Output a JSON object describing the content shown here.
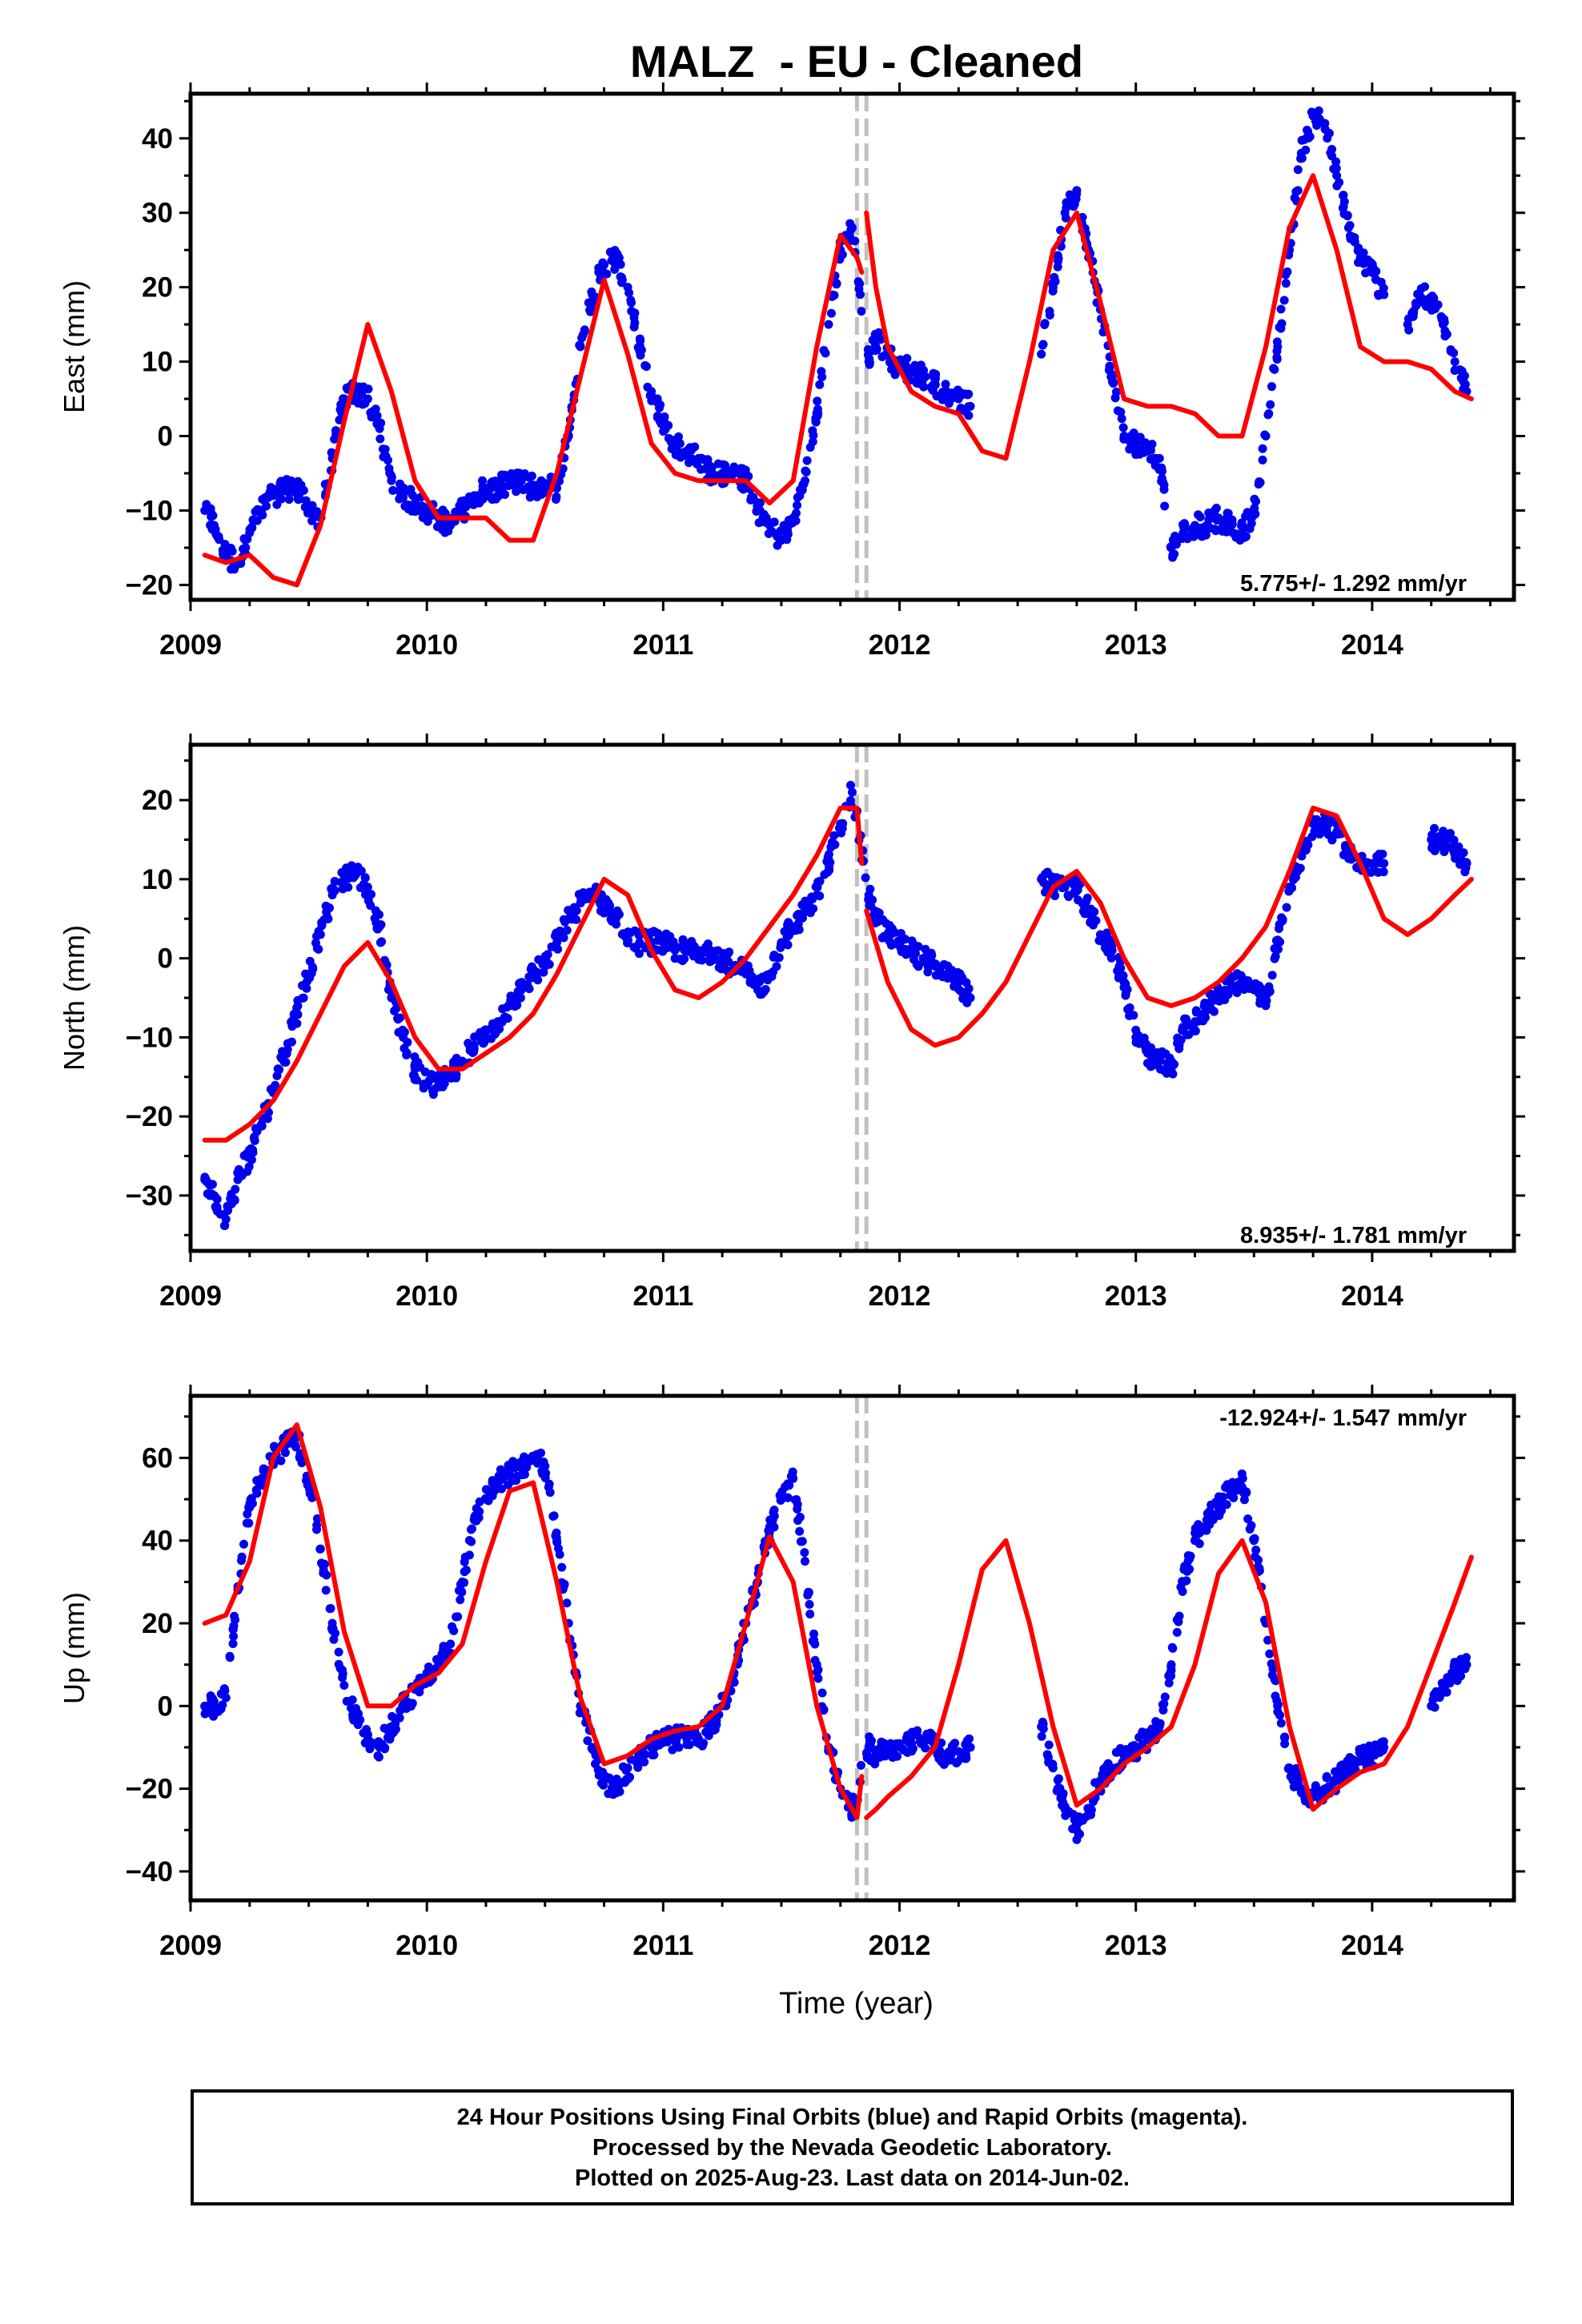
{
  "title": "MALZ  - EU - Cleaned",
  "caption": [
    "24 Hour Positions Using Final Orbits (blue) and Rapid Orbits (magenta).",
    "Processed by the Nevada Geodetic Laboratory.",
    "Plotted on 2025-Aug-23. Last data on 2014-Jun-02."
  ],
  "colors": {
    "points": "#0000ee",
    "model": "#ff0000",
    "steps": "#c0c0c0"
  },
  "chart_data": [
    {
      "type": "scatter",
      "component": "East",
      "title": "MALZ  - EU - Cleaned",
      "xlabel": "",
      "ylabel": "East (mm)",
      "xlim": [
        2009.0,
        2014.6
      ],
      "ylim": [
        -22,
        46
      ],
      "xticks": [
        2009,
        2010,
        2011,
        2012,
        2013,
        2014
      ],
      "yticks": [
        -20,
        -10,
        0,
        10,
        20,
        30,
        40
      ],
      "rate_label": "5.775+/- 1.292 mm/yr",
      "step_lines": [
        2011.82,
        2011.86
      ],
      "obs_x": [
        2009.06,
        2009.1,
        2009.15,
        2009.2,
        2009.25,
        2009.3,
        2009.35,
        2009.4,
        2009.45,
        2009.5,
        2009.55,
        2009.6,
        2009.65,
        2009.7,
        2009.75,
        2009.8,
        2009.85,
        2009.9,
        2009.95,
        2010.0,
        2010.05,
        2010.1,
        2010.15,
        2010.2,
        2010.25,
        2010.3,
        2010.35,
        2010.4,
        2010.45,
        2010.5,
        2010.55,
        2010.6,
        2010.65,
        2010.7,
        2010.75,
        2010.8,
        2010.85,
        2010.9,
        2010.95,
        2011.0,
        2011.05,
        2011.1,
        2011.15,
        2011.2,
        2011.25,
        2011.3,
        2011.35,
        2011.4,
        2011.45,
        2011.5,
        2011.55,
        2011.6,
        2011.65,
        2011.7,
        2011.75,
        2011.8,
        2011.87,
        2011.9,
        2011.95,
        2012.0,
        2012.05,
        2012.1,
        2012.15,
        2012.2,
        2012.25,
        2012.3,
        2012.6,
        2012.65,
        2012.7,
        2012.75,
        2012.8,
        2012.85,
        2012.9,
        2012.95,
        2013.0,
        2013.05,
        2013.1,
        2013.15,
        2013.2,
        2013.25,
        2013.3,
        2013.35,
        2013.4,
        2013.45,
        2013.5,
        2013.55,
        2013.6,
        2013.65,
        2013.7,
        2013.75,
        2013.8,
        2013.85,
        2013.9,
        2013.95,
        2014.0,
        2014.05,
        2014.15,
        2014.2,
        2014.25,
        2014.3,
        2014.35,
        2014.4
      ],
      "obs_y": [
        -10,
        -12,
        -16,
        -17,
        -13,
        -10,
        -8,
        -7,
        -7,
        -10,
        -11,
        -3,
        5,
        6,
        5,
        1,
        -6,
        -8,
        -9,
        -10,
        -11,
        -12,
        -10,
        -8,
        -7,
        -7,
        -6,
        -6,
        -7,
        -7,
        -7,
        0,
        12,
        19,
        23,
        24,
        20,
        12,
        6,
        2,
        -1,
        -2,
        -3,
        -5,
        -5,
        -5,
        -6,
        -10,
        -12,
        -14,
        -11,
        -6,
        3,
        15,
        25,
        28,
        10,
        13,
        11,
        9,
        9,
        8,
        7,
        6,
        5,
        4,
        11,
        20,
        30,
        33,
        25,
        17,
        8,
        0,
        -1,
        -2,
        -3,
        -15,
        -13,
        -12,
        -12,
        -11,
        -12,
        -13,
        -10,
        0,
        12,
        25,
        38,
        43,
        42,
        35,
        28,
        24,
        22,
        19,
        15,
        19,
        18,
        15,
        10,
        6
      ],
      "model_x": [
        2009.06,
        2009.15,
        2009.25,
        2009.35,
        2009.45,
        2009.55,
        2009.65,
        2009.75,
        2009.85,
        2009.95,
        2010.05,
        2010.15,
        2010.25,
        2010.35,
        2010.45,
        2010.55,
        2010.65,
        2010.75,
        2010.85,
        2010.95,
        2011.05,
        2011.15,
        2011.25,
        2011.35,
        2011.45,
        2011.55,
        2011.65,
        2011.75,
        2011.82,
        2011.84
      ],
      "model_y": [
        -16,
        -17,
        -16,
        -19,
        -20,
        -12,
        2,
        15,
        6,
        -6,
        -11,
        -11,
        -11,
        -14,
        -14,
        -5,
        8,
        21,
        11,
        -1,
        -5,
        -6,
        -6,
        -6,
        -9,
        -6,
        12,
        27,
        24,
        22
      ],
      "model2_x": [
        2011.86,
        2011.9,
        2011.95,
        2012.05,
        2012.15,
        2012.25,
        2012.35,
        2012.45,
        2012.55,
        2012.65,
        2012.75,
        2012.85,
        2012.95,
        2013.05,
        2013.15,
        2013.25,
        2013.35,
        2013.45,
        2013.55,
        2013.65,
        2013.75,
        2013.85,
        2013.95,
        2014.05,
        2014.15,
        2014.25,
        2014.35,
        2014.42
      ],
      "model2_y": [
        30,
        20,
        12,
        6,
        4,
        3,
        -2,
        -3,
        10,
        25,
        30,
        18,
        5,
        4,
        4,
        3,
        0,
        0,
        12,
        28,
        35,
        25,
        12,
        10,
        10,
        9,
        6,
        5
      ]
    },
    {
      "type": "scatter",
      "component": "North",
      "xlabel": "",
      "ylabel": "North (mm)",
      "xlim": [
        2009.0,
        2014.6
      ],
      "ylim": [
        -37,
        27
      ],
      "xticks": [
        2009,
        2010,
        2011,
        2012,
        2013,
        2014
      ],
      "yticks": [
        -30,
        -20,
        -10,
        0,
        10,
        20
      ],
      "rate_label": "8.935+/- 1.781 mm/yr",
      "step_lines": [
        2011.82,
        2011.86
      ],
      "obs_x": [
        2009.06,
        2009.1,
        2009.15,
        2009.2,
        2009.25,
        2009.3,
        2009.35,
        2009.4,
        2009.45,
        2009.5,
        2009.55,
        2009.6,
        2009.65,
        2009.7,
        2009.75,
        2009.8,
        2009.85,
        2009.9,
        2009.95,
        2010.0,
        2010.05,
        2010.1,
        2010.15,
        2010.2,
        2010.25,
        2010.3,
        2010.35,
        2010.4,
        2010.45,
        2010.5,
        2010.55,
        2010.6,
        2010.65,
        2010.7,
        2010.75,
        2010.8,
        2010.85,
        2010.9,
        2010.95,
        2011.0,
        2011.05,
        2011.1,
        2011.15,
        2011.2,
        2011.25,
        2011.3,
        2011.35,
        2011.4,
        2011.45,
        2011.5,
        2011.55,
        2011.6,
        2011.65,
        2011.7,
        2011.75,
        2011.8,
        2011.87,
        2011.9,
        2011.95,
        2012.0,
        2012.05,
        2012.1,
        2012.15,
        2012.2,
        2012.25,
        2012.3,
        2012.6,
        2012.65,
        2012.7,
        2012.75,
        2012.8,
        2012.85,
        2012.9,
        2012.95,
        2013.0,
        2013.05,
        2013.1,
        2013.15,
        2013.2,
        2013.25,
        2013.3,
        2013.35,
        2013.4,
        2013.45,
        2013.5,
        2013.55,
        2013.6,
        2013.65,
        2013.7,
        2013.75,
        2013.8,
        2013.85,
        2013.9,
        2013.95,
        2014.0,
        2014.05,
        2014.25,
        2014.3,
        2014.35,
        2014.4
      ],
      "obs_y": [
        -28,
        -30,
        -33,
        -28,
        -25,
        -21,
        -17,
        -12,
        -7,
        -2,
        3,
        8,
        10,
        11,
        9,
        4,
        -5,
        -10,
        -14,
        -16,
        -16,
        -15,
        -13,
        -11,
        -10,
        -8,
        -6,
        -4,
        -2,
        -1,
        2,
        5,
        7,
        8,
        7,
        5,
        3,
        2,
        2,
        2,
        1,
        1,
        1,
        1,
        0,
        -1,
        -2,
        -4,
        -2,
        2,
        4,
        6,
        8,
        12,
        17,
        21,
        8,
        5,
        3,
        2,
        1,
        0,
        -1,
        -2,
        -3,
        -5,
        10,
        9,
        9,
        9,
        6,
        3,
        1,
        -3,
        -10,
        -12,
        -13,
        -14,
        -9,
        -8,
        -6,
        -5,
        -3,
        -3,
        -4,
        -6,
        2,
        9,
        13,
        17,
        17,
        16,
        13,
        12,
        12,
        12,
        15,
        15,
        14,
        12
      ],
      "model_x": [
        2009.06,
        2009.15,
        2009.25,
        2009.35,
        2009.45,
        2009.55,
        2009.65,
        2009.75,
        2009.85,
        2009.95,
        2010.05,
        2010.15,
        2010.25,
        2010.35,
        2010.45,
        2010.55,
        2010.65,
        2010.75,
        2010.85,
        2010.95,
        2011.05,
        2011.15,
        2011.25,
        2011.35,
        2011.45,
        2011.55,
        2011.65,
        2011.75,
        2011.82,
        2011.84
      ],
      "model_y": [
        -23,
        -23,
        -21,
        -18,
        -13,
        -7,
        -1,
        2,
        -3,
        -10,
        -14,
        -14,
        -12,
        -10,
        -7,
        -2,
        4,
        10,
        8,
        1,
        -4,
        -5,
        -3,
        0,
        4,
        8,
        13,
        19,
        19,
        12
      ],
      "model2_x": [
        2011.86,
        2011.9,
        2011.95,
        2012.05,
        2012.15,
        2012.25,
        2012.35,
        2012.45,
        2012.55,
        2012.65,
        2012.75,
        2012.85,
        2012.95,
        2013.05,
        2013.15,
        2013.25,
        2013.35,
        2013.45,
        2013.55,
        2013.65,
        2013.75,
        2013.85,
        2013.95,
        2014.05,
        2014.15,
        2014.25,
        2014.35,
        2014.42
      ],
      "model2_y": [
        6,
        2,
        -3,
        -9,
        -11,
        -10,
        -7,
        -3,
        3,
        9,
        11,
        7,
        0,
        -5,
        -6,
        -5,
        -3,
        0,
        4,
        11,
        19,
        18,
        12,
        5,
        3,
        5,
        8,
        10
      ]
    },
    {
      "type": "scatter",
      "component": "Up",
      "xlabel": "Time (year)",
      "ylabel": "Up (mm)",
      "xlim": [
        2009.0,
        2014.6
      ],
      "ylim": [
        -47,
        75
      ],
      "xticks": [
        2009,
        2010,
        2011,
        2012,
        2013,
        2014
      ],
      "yticks": [
        -40,
        -20,
        0,
        20,
        40,
        60
      ],
      "rate_label": "-12.924+/- 1.547 mm/yr",
      "step_lines": [
        2011.82,
        2011.86
      ],
      "obs_x": [
        2009.06,
        2009.1,
        2009.15,
        2009.2,
        2009.25,
        2009.3,
        2009.35,
        2009.4,
        2009.45,
        2009.5,
        2009.55,
        2009.6,
        2009.65,
        2009.7,
        2009.75,
        2009.8,
        2009.85,
        2009.9,
        2009.95,
        2010.0,
        2010.05,
        2010.1,
        2010.15,
        2010.2,
        2010.25,
        2010.3,
        2010.35,
        2010.4,
        2010.45,
        2010.5,
        2010.55,
        2010.6,
        2010.65,
        2010.7,
        2010.75,
        2010.8,
        2010.85,
        2010.9,
        2010.95,
        2011.0,
        2011.05,
        2011.1,
        2011.15,
        2011.2,
        2011.25,
        2011.3,
        2011.35,
        2011.4,
        2011.45,
        2011.5,
        2011.55,
        2011.6,
        2011.65,
        2011.7,
        2011.75,
        2011.8,
        2011.87,
        2011.9,
        2011.95,
        2012.0,
        2012.05,
        2012.1,
        2012.15,
        2012.2,
        2012.25,
        2012.3,
        2012.6,
        2012.65,
        2012.7,
        2012.75,
        2012.8,
        2012.85,
        2012.9,
        2012.95,
        2013.0,
        2013.05,
        2013.1,
        2013.15,
        2013.2,
        2013.25,
        2013.3,
        2013.35,
        2013.4,
        2013.45,
        2013.5,
        2013.55,
        2013.6,
        2013.65,
        2013.7,
        2013.75,
        2013.8,
        2013.85,
        2013.9,
        2013.95,
        2014.0,
        2014.05,
        2014.25,
        2014.3,
        2014.35,
        2014.4
      ],
      "obs_y": [
        0,
        0,
        2,
        28,
        48,
        55,
        60,
        63,
        65,
        55,
        38,
        20,
        5,
        -3,
        -8,
        -10,
        -5,
        0,
        4,
        8,
        10,
        15,
        30,
        45,
        50,
        54,
        56,
        58,
        60,
        58,
        40,
        20,
        0,
        -10,
        -18,
        -20,
        -15,
        -12,
        -10,
        -8,
        -8,
        -8,
        -8,
        -5,
        0,
        8,
        20,
        30,
        42,
        50,
        55,
        35,
        10,
        -10,
        -20,
        -25,
        -10,
        -12,
        -10,
        -10,
        -9,
        -8,
        -10,
        -12,
        -11,
        -10,
        -5,
        -15,
        -25,
        -30,
        -25,
        -18,
        -15,
        -12,
        -10,
        -8,
        -5,
        10,
        30,
        40,
        45,
        48,
        52,
        55,
        40,
        20,
        0,
        -15,
        -20,
        -22,
        -20,
        -18,
        -15,
        -13,
        -12,
        -10,
        0,
        5,
        8,
        10
      ],
      "model_x": [
        2009.06,
        2009.15,
        2009.25,
        2009.35,
        2009.45,
        2009.55,
        2009.65,
        2009.75,
        2009.85,
        2009.95,
        2010.05,
        2010.15,
        2010.25,
        2010.35,
        2010.45,
        2010.55,
        2010.65,
        2010.75,
        2010.85,
        2010.95,
        2011.05,
        2011.15,
        2011.25,
        2011.35,
        2011.45,
        2011.55,
        2011.65,
        2011.75,
        2011.82,
        2011.84
      ],
      "model_y": [
        20,
        22,
        35,
        60,
        68,
        48,
        18,
        0,
        0,
        5,
        8,
        15,
        35,
        52,
        54,
        30,
        2,
        -14,
        -12,
        -8,
        -6,
        -5,
        0,
        20,
        41,
        30,
        0,
        -20,
        -27,
        -17
      ],
      "model2_x": [
        2011.86,
        2011.9,
        2011.95,
        2012.05,
        2012.15,
        2012.25,
        2012.35,
        2012.45,
        2012.55,
        2012.65,
        2012.75,
        2012.85,
        2012.95,
        2013.05,
        2013.15,
        2013.25,
        2013.35,
        2013.45,
        2013.55,
        2013.65,
        2013.75,
        2013.85,
        2013.95,
        2014.05,
        2014.15,
        2014.25,
        2014.35,
        2014.42
      ],
      "model2_y": [
        -27,
        -25,
        -22,
        -17,
        -10,
        10,
        33,
        40,
        20,
        -5,
        -24,
        -20,
        -14,
        -10,
        -5,
        10,
        32,
        40,
        25,
        -5,
        -25,
        -20,
        -16,
        -14,
        -5,
        10,
        25,
        36
      ]
    }
  ]
}
